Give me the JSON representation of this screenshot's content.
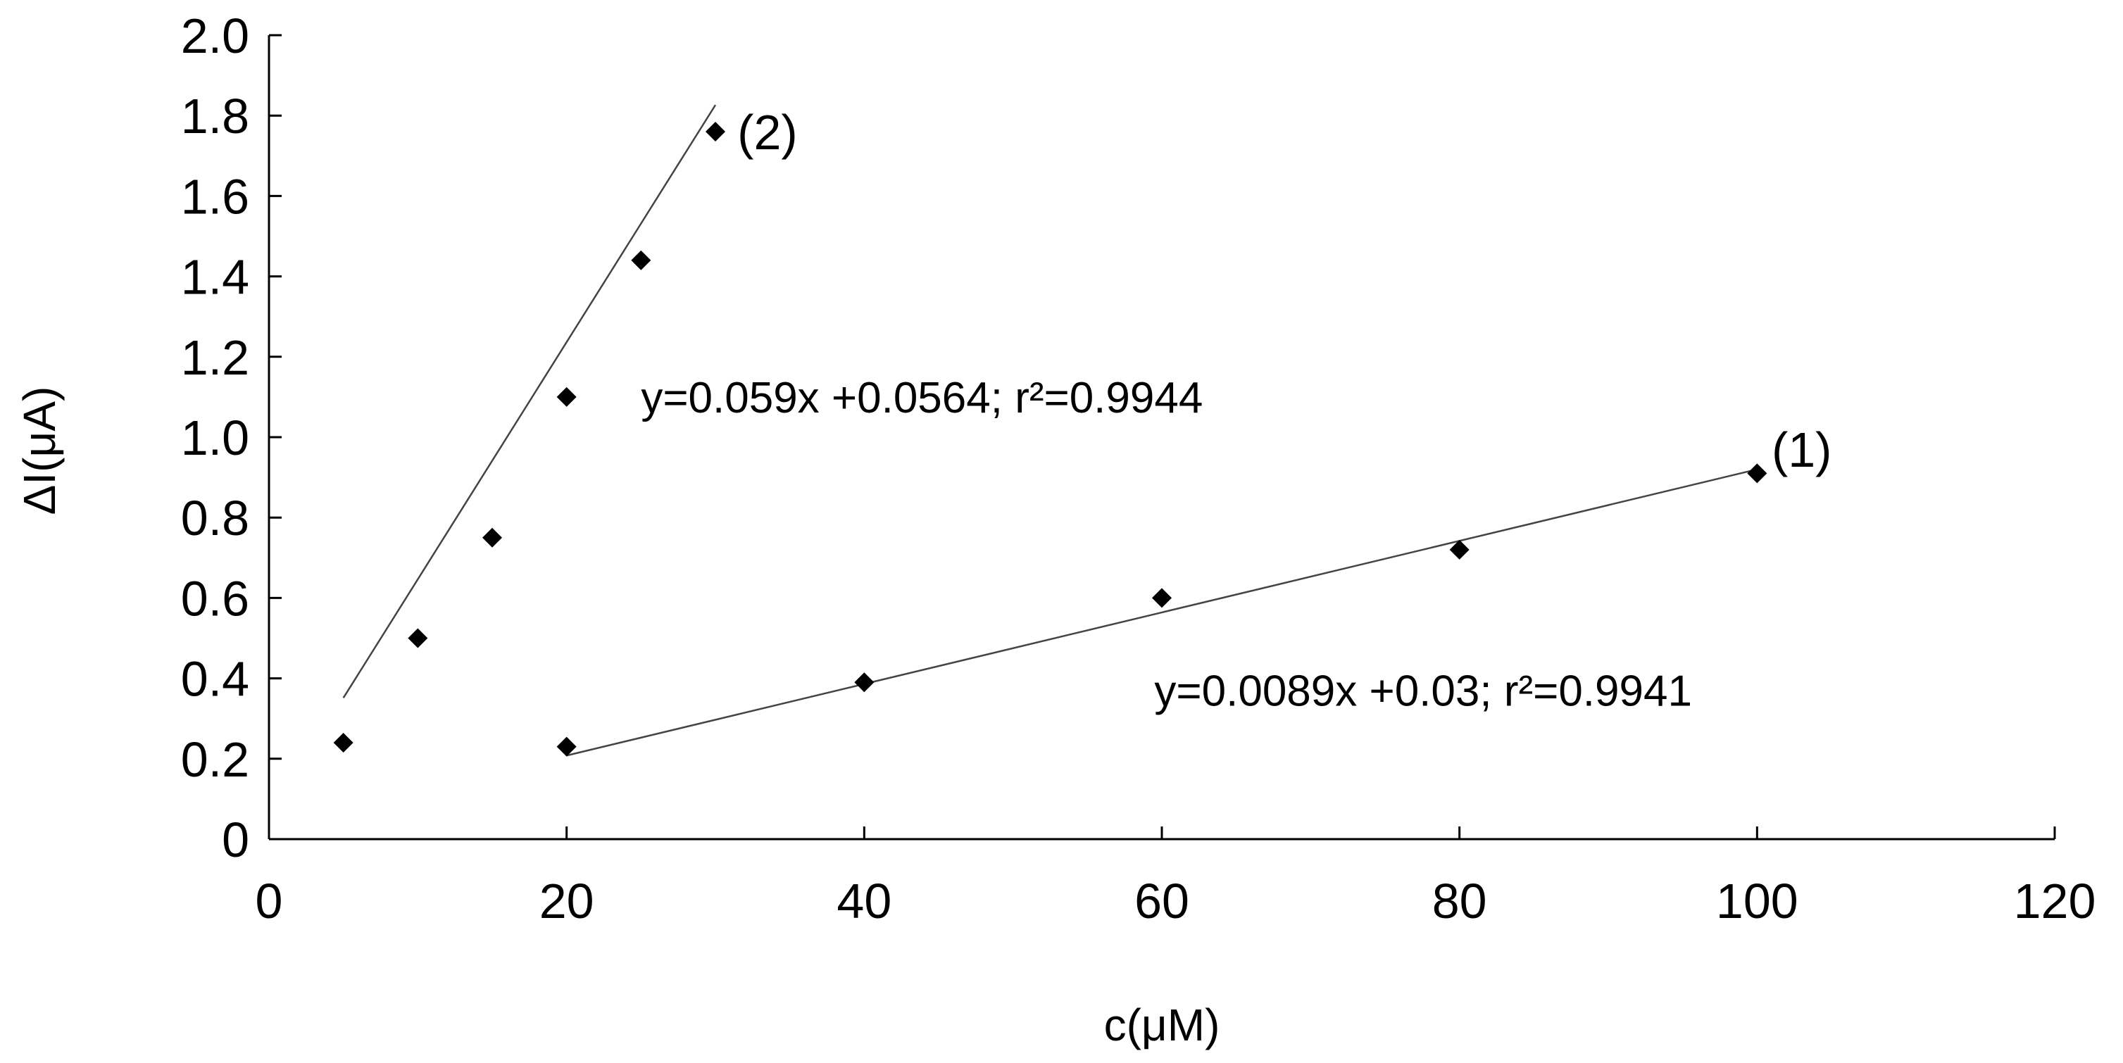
{
  "chart_data": {
    "type": "scatter",
    "title": "",
    "xlabel": "c(μM)",
    "ylabel": "ΔI(μA)",
    "xlim": [
      0,
      120
    ],
    "ylim": [
      0,
      2.0
    ],
    "x_ticks": [
      0,
      20,
      40,
      60,
      80,
      100,
      120
    ],
    "x_tick_labels": [
      "0",
      "20",
      "40",
      "60",
      "80",
      "100",
      "120"
    ],
    "y_ticks": [
      0,
      0.2,
      0.4,
      0.6,
      0.8,
      1.0,
      1.2,
      1.4,
      1.6,
      1.8,
      2.0
    ],
    "y_tick_labels": [
      "0",
      "0.2",
      "0.4",
      "0.6",
      "0.8",
      "1.0",
      "1.2",
      "1.4",
      "1.6",
      "1.8",
      "2.0"
    ],
    "grid": false,
    "series": [
      {
        "name": "(2)",
        "label": "(2)",
        "x": [
          5,
          10,
          15,
          20,
          25,
          30
        ],
        "y": [
          0.24,
          0.5,
          0.75,
          1.1,
          1.44,
          1.76
        ],
        "fit": {
          "slope": 0.059,
          "intercept": 0.0564,
          "x_range": [
            5,
            30
          ]
        },
        "equation": "y=0.059x +0.0564; r²=0.9944",
        "label_anchor": [
          33.5,
          1.76
        ],
        "equation_anchor": [
          25,
          1.1
        ]
      },
      {
        "name": "(1)",
        "label": "(1)",
        "x": [
          20,
          40,
          60,
          80,
          100
        ],
        "y": [
          0.23,
          0.39,
          0.6,
          0.72,
          0.91
        ],
        "fit": {
          "slope": 0.0089,
          "intercept": 0.03,
          "x_range": [
            20,
            100
          ]
        },
        "equation": "y=0.0089x +0.03; r²=0.9941",
        "label_anchor": [
          103,
          0.97
        ],
        "equation_anchor": [
          59.5,
          0.37
        ]
      }
    ],
    "marker": "diamond",
    "marker_color": "#000000",
    "line_color": "#444444"
  }
}
